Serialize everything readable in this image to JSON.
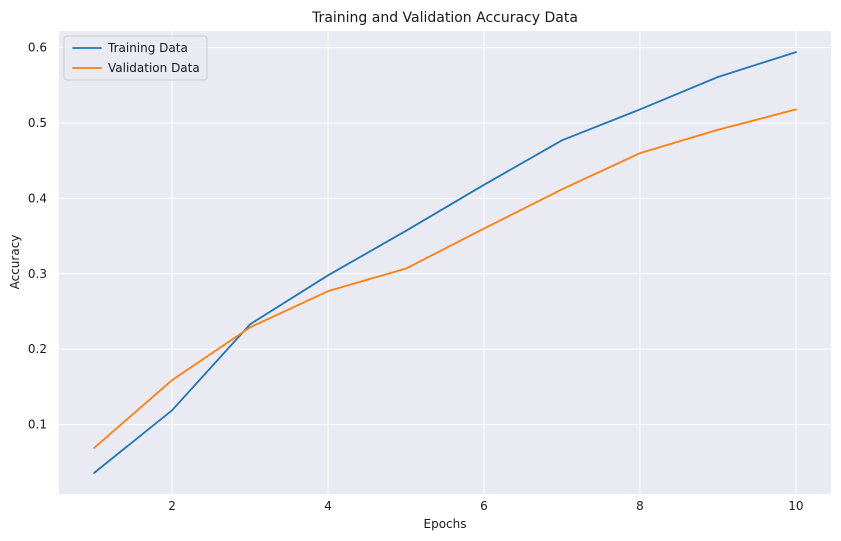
{
  "chart_data": {
    "type": "line",
    "title": "Training and Validation Accuracy Data",
    "xlabel": "Epochs",
    "ylabel": "Accuracy",
    "x": [
      1,
      2,
      3,
      4,
      5,
      6,
      7,
      8,
      9,
      10
    ],
    "series": [
      {
        "name": "Training Data",
        "color": "#1f77b4",
        "values": [
          0.036,
          0.119,
          0.233,
          0.298,
          0.357,
          0.418,
          0.477,
          0.518,
          0.561,
          0.594
        ]
      },
      {
        "name": "Validation Data",
        "color": "#ff7f0e",
        "values": [
          0.069,
          0.159,
          0.229,
          0.277,
          0.307,
          0.36,
          0.412,
          0.46,
          0.491,
          0.518
        ]
      }
    ],
    "xlim": [
      0.55,
      10.45
    ],
    "ylim": [
      0.008,
      0.622
    ],
    "xticks": [
      2,
      4,
      6,
      8,
      10
    ],
    "xtick_labels": [
      "2",
      "4",
      "6",
      "8",
      "10"
    ],
    "yticks": [
      0.1,
      0.2,
      0.3,
      0.4,
      0.5,
      0.6
    ],
    "ytick_labels": [
      "0.1",
      "0.2",
      "0.3",
      "0.4",
      "0.5",
      "0.6"
    ],
    "grid": true,
    "legend_position": "top-left",
    "plot_background": "#eaeaf2",
    "grid_color": "#ffffff"
  }
}
